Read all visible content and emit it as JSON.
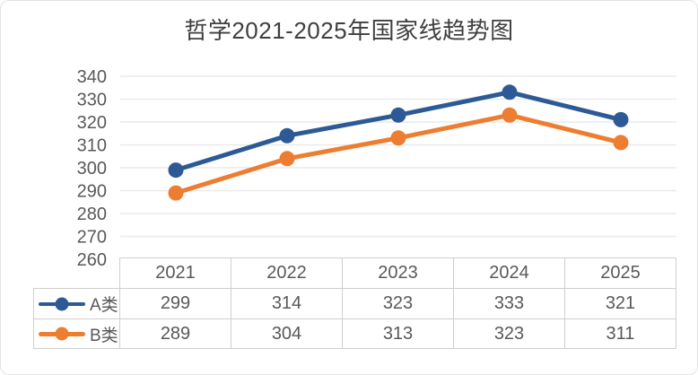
{
  "chart_data": {
    "type": "line",
    "title": "哲学2021-2025年国家线趋势图",
    "categories": [
      "2021",
      "2022",
      "2023",
      "2024",
      "2025"
    ],
    "series": [
      {
        "name": "A类",
        "values": [
          299,
          314,
          323,
          333,
          321
        ],
        "color": "#2D5A96"
      },
      {
        "name": "B类",
        "values": [
          289,
          304,
          313,
          323,
          311
        ],
        "color": "#ED7D31"
      }
    ],
    "xlabel": "",
    "ylabel": "",
    "ylim": [
      260,
      340
    ],
    "yticks": [
      340,
      330,
      320,
      310,
      300,
      290,
      280,
      270,
      260
    ],
    "grid": true,
    "legend_position": "data-table-left",
    "data_table": true
  },
  "colors": {
    "gridline": "#EAEAEA",
    "axis_text": "#595959",
    "table_border": "#CFCFCF",
    "table_text": "#595959",
    "title_text": "#3F3F3F",
    "card_border": "#E3E3E3",
    "background": "#FFFFFF"
  }
}
